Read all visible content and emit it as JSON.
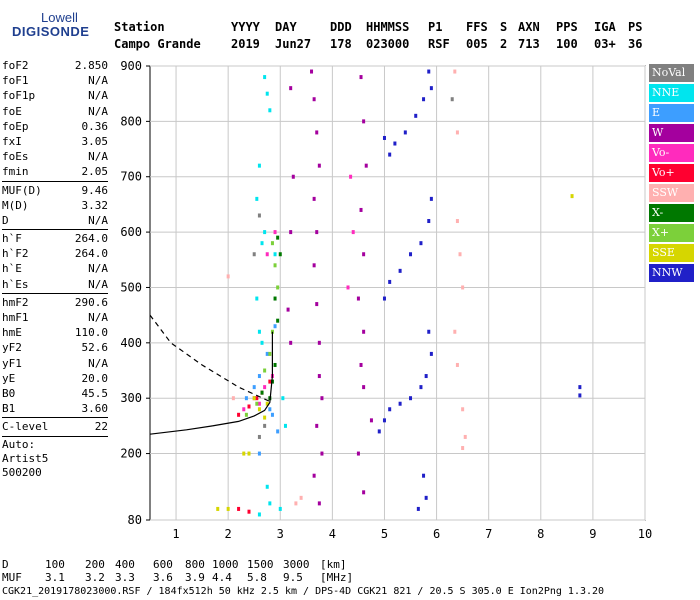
{
  "logo": {
    "line1": "Lowell",
    "line2": "DIGISONDE"
  },
  "header": {
    "labels": [
      "Station",
      "YYYY",
      "DAY",
      "DDD",
      "HHMMSS",
      "P1",
      "FFS",
      "S",
      "AXN",
      "PPS",
      "IGA",
      "PS"
    ],
    "values": [
      "Campo Grande",
      "2019",
      "Jun27",
      "178",
      "023000",
      "RSF",
      "005",
      "2",
      "713",
      "100",
      "03+",
      "36"
    ]
  },
  "params": {
    "group1": [
      {
        "name": "foF2",
        "value": "2.850"
      },
      {
        "name": "foF1",
        "value": "N/A"
      },
      {
        "name": "foF1p",
        "value": "N/A"
      },
      {
        "name": "foE",
        "value": "N/A"
      },
      {
        "name": "foEp",
        "value": "0.36"
      },
      {
        "name": "fxI",
        "value": "3.05"
      },
      {
        "name": "foEs",
        "value": "N/A"
      },
      {
        "name": "fmin",
        "value": "2.05"
      }
    ],
    "group2": [
      {
        "name": "MUF(D)",
        "value": "9.46"
      },
      {
        "name": "M(D)",
        "value": "3.32"
      },
      {
        "name": "D",
        "value": "N/A"
      }
    ],
    "group3": [
      {
        "name": "h`F",
        "value": "264.0"
      },
      {
        "name": "h`F2",
        "value": "264.0"
      },
      {
        "name": "h`E",
        "value": "N/A"
      },
      {
        "name": "h`Es",
        "value": "N/A"
      }
    ],
    "group4": [
      {
        "name": "hmF2",
        "value": "290.6"
      },
      {
        "name": "hmF1",
        "value": "N/A"
      },
      {
        "name": "hmE",
        "value": "110.0"
      },
      {
        "name": "yF2",
        "value": "52.6"
      },
      {
        "name": "yF1",
        "value": "N/A"
      },
      {
        "name": "yE",
        "value": "20.0"
      },
      {
        "name": "B0",
        "value": "45.5"
      },
      {
        "name": "B1",
        "value": "3.60"
      }
    ],
    "group5": [
      {
        "name": "C-level",
        "value": "22"
      }
    ],
    "autoscaling": [
      "Auto:",
      "Artist5",
      "500200"
    ]
  },
  "legend": [
    {
      "label": "NoVal",
      "color": "#808080"
    },
    {
      "label": "NNE",
      "color": "#00e5ee"
    },
    {
      "label": "E",
      "color": "#3d9eff"
    },
    {
      "label": "W",
      "color": "#a4009e"
    },
    {
      "label": "Vo-",
      "color": "#ff2bbd"
    },
    {
      "label": "Vo+",
      "color": "#ff0030"
    },
    {
      "label": "SSW",
      "color": "#ffb0b0"
    },
    {
      "label": "X-",
      "color": "#007800"
    },
    {
      "label": "X+",
      "color": "#7cd03a"
    },
    {
      "label": "SSE",
      "color": "#d6d600"
    },
    {
      "label": "NNW",
      "color": "#2020c8"
    }
  ],
  "bottom": {
    "d_label": "D",
    "d_values": [
      "100",
      "200",
      "400",
      "600",
      "800",
      "1000",
      "1500",
      "3000",
      "[km]"
    ],
    "muf_label": "MUF",
    "muf_values": [
      "3.1",
      "3.2",
      "3.3",
      "3.6",
      "3.9",
      "4.4",
      "5.8",
      "9.5",
      "[MHz]"
    ]
  },
  "footer": "CGK21_2019178023000.RSF / 184fx512h 50 kHz 2.5 km / DPS-4D CGK21 821 / 20.5 S 305.0 E Ion2Png 1.3.20",
  "chart_data": {
    "type": "scatter",
    "xlim": [
      0.5,
      10
    ],
    "ylim": [
      80,
      900
    ],
    "xticks": [
      1,
      2,
      3,
      4,
      5,
      6,
      7,
      8,
      9,
      10
    ],
    "yticks": [
      80,
      200,
      300,
      400,
      500,
      600,
      700,
      800,
      900
    ],
    "grid": true,
    "legend_placement": "right",
    "series": [
      {
        "name": "NNE",
        "color": "#00e5ee",
        "points": [
          [
            2.7,
            880
          ],
          [
            2.75,
            850
          ],
          [
            2.8,
            820
          ],
          [
            2.6,
            720
          ],
          [
            2.55,
            660
          ],
          [
            2.7,
            600
          ],
          [
            2.65,
            580
          ],
          [
            2.9,
            560
          ],
          [
            2.55,
            480
          ],
          [
            2.6,
            420
          ],
          [
            2.65,
            400
          ],
          [
            2.75,
            140
          ],
          [
            2.8,
            110
          ],
          [
            2.6,
            90
          ],
          [
            3.0,
            100
          ],
          [
            3.05,
            300
          ],
          [
            3.1,
            250
          ]
        ]
      },
      {
        "name": "E",
        "color": "#3d9eff",
        "points": [
          [
            2.35,
            300
          ],
          [
            2.5,
            320
          ],
          [
            2.6,
            340
          ],
          [
            2.75,
            380
          ],
          [
            2.8,
            280
          ],
          [
            2.85,
            270
          ],
          [
            2.9,
            430
          ],
          [
            2.95,
            240
          ],
          [
            2.6,
            200
          ]
        ]
      },
      {
        "name": "W",
        "color": "#a4009e",
        "points": [
          [
            3.6,
            890
          ],
          [
            3.65,
            840
          ],
          [
            3.7,
            780
          ],
          [
            3.75,
            720
          ],
          [
            3.65,
            660
          ],
          [
            3.7,
            600
          ],
          [
            3.65,
            540
          ],
          [
            3.7,
            470
          ],
          [
            3.75,
            400
          ],
          [
            3.75,
            340
          ],
          [
            3.8,
            300
          ],
          [
            3.7,
            250
          ],
          [
            3.8,
            200
          ],
          [
            3.65,
            160
          ],
          [
            3.75,
            110
          ],
          [
            4.55,
            880
          ],
          [
            4.6,
            800
          ],
          [
            4.65,
            720
          ],
          [
            4.55,
            640
          ],
          [
            4.6,
            560
          ],
          [
            4.5,
            480
          ],
          [
            4.6,
            420
          ],
          [
            4.55,
            360
          ],
          [
            4.6,
            320
          ],
          [
            4.75,
            260
          ],
          [
            4.5,
            200
          ],
          [
            4.6,
            130
          ],
          [
            3.2,
            860
          ],
          [
            3.25,
            700
          ],
          [
            3.2,
            600
          ],
          [
            3.15,
            460
          ],
          [
            3.2,
            400
          ]
        ]
      },
      {
        "name": "Vo-",
        "color": "#ff2bbd",
        "points": [
          [
            2.3,
            280
          ],
          [
            2.5,
            300
          ],
          [
            2.7,
            320
          ],
          [
            2.85,
            340
          ],
          [
            2.6,
            290
          ],
          [
            2.9,
            600
          ],
          [
            2.75,
            560
          ],
          [
            4.35,
            700
          ],
          [
            4.4,
            600
          ],
          [
            4.3,
            500
          ]
        ]
      },
      {
        "name": "Vo+",
        "color": "#ff0030",
        "points": [
          [
            2.2,
            270
          ],
          [
            2.4,
            285
          ],
          [
            2.55,
            300
          ],
          [
            2.65,
            310
          ],
          [
            2.8,
            330
          ],
          [
            2.2,
            100
          ],
          [
            2.4,
            95
          ]
        ]
      },
      {
        "name": "SSW",
        "color": "#ffb0b0",
        "points": [
          [
            6.35,
            890
          ],
          [
            6.4,
            780
          ],
          [
            6.4,
            620
          ],
          [
            6.45,
            560
          ],
          [
            6.5,
            500
          ],
          [
            6.35,
            420
          ],
          [
            6.4,
            360
          ],
          [
            6.5,
            280
          ],
          [
            6.55,
            230
          ],
          [
            6.5,
            210
          ],
          [
            2.1,
            300
          ],
          [
            2.0,
            520
          ],
          [
            3.4,
            120
          ],
          [
            3.3,
            110
          ]
        ]
      },
      {
        "name": "X-",
        "color": "#007800",
        "points": [
          [
            2.95,
            590
          ],
          [
            3.0,
            560
          ],
          [
            2.9,
            480
          ],
          [
            2.95,
            440
          ],
          [
            2.9,
            360
          ],
          [
            2.85,
            330
          ],
          [
            2.8,
            300
          ],
          [
            2.65,
            310
          ]
        ]
      },
      {
        "name": "X+",
        "color": "#7cd03a",
        "points": [
          [
            2.85,
            580
          ],
          [
            2.9,
            540
          ],
          [
            2.95,
            500
          ],
          [
            2.85,
            420
          ],
          [
            2.8,
            380
          ],
          [
            2.7,
            350
          ],
          [
            2.55,
            290
          ],
          [
            2.35,
            270
          ]
        ]
      },
      {
        "name": "SSE",
        "color": "#d6d600",
        "points": [
          [
            2.5,
            300
          ],
          [
            2.6,
            280
          ],
          [
            2.7,
            265
          ],
          [
            2.75,
            290
          ],
          [
            1.8,
            100
          ],
          [
            2.0,
            100
          ],
          [
            2.3,
            200
          ],
          [
            2.4,
            200
          ],
          [
            8.6,
            665
          ]
        ]
      },
      {
        "name": "NNW",
        "color": "#2020c8",
        "points": [
          [
            5.85,
            890
          ],
          [
            5.9,
            860
          ],
          [
            5.75,
            840
          ],
          [
            5.6,
            810
          ],
          [
            5.4,
            780
          ],
          [
            5.2,
            760
          ],
          [
            5.1,
            740
          ],
          [
            5.0,
            770
          ],
          [
            5.9,
            660
          ],
          [
            5.85,
            620
          ],
          [
            5.7,
            580
          ],
          [
            5.5,
            560
          ],
          [
            5.3,
            530
          ],
          [
            5.1,
            510
          ],
          [
            5.0,
            480
          ],
          [
            5.85,
            420
          ],
          [
            5.9,
            380
          ],
          [
            5.8,
            340
          ],
          [
            5.7,
            320
          ],
          [
            5.5,
            300
          ],
          [
            5.3,
            290
          ],
          [
            5.1,
            280
          ],
          [
            5.0,
            260
          ],
          [
            4.9,
            240
          ],
          [
            5.75,
            160
          ],
          [
            5.8,
            120
          ],
          [
            5.65,
            100
          ],
          [
            8.75,
            320
          ],
          [
            8.75,
            305
          ]
        ]
      },
      {
        "name": "NoVal",
        "color": "#808080",
        "points": [
          [
            2.6,
            630
          ],
          [
            2.5,
            560
          ],
          [
            2.7,
            250
          ],
          [
            2.6,
            230
          ],
          [
            6.3,
            840
          ]
        ]
      }
    ],
    "profile_solid": [
      [
        1.7,
        250
      ],
      [
        2.2,
        258
      ],
      [
        2.5,
        268
      ],
      [
        2.7,
        278
      ],
      [
        2.8,
        292
      ],
      [
        2.85,
        340
      ],
      [
        2.85,
        420
      ]
    ],
    "profile_dashed": [
      [
        0.5,
        450
      ],
      [
        0.9,
        400
      ],
      [
        1.5,
        360
      ],
      [
        2.2,
        320
      ],
      [
        2.85,
        292
      ]
    ],
    "profile_lower": [
      [
        0.5,
        235
      ],
      [
        1.2,
        243
      ],
      [
        1.7,
        250
      ]
    ]
  }
}
